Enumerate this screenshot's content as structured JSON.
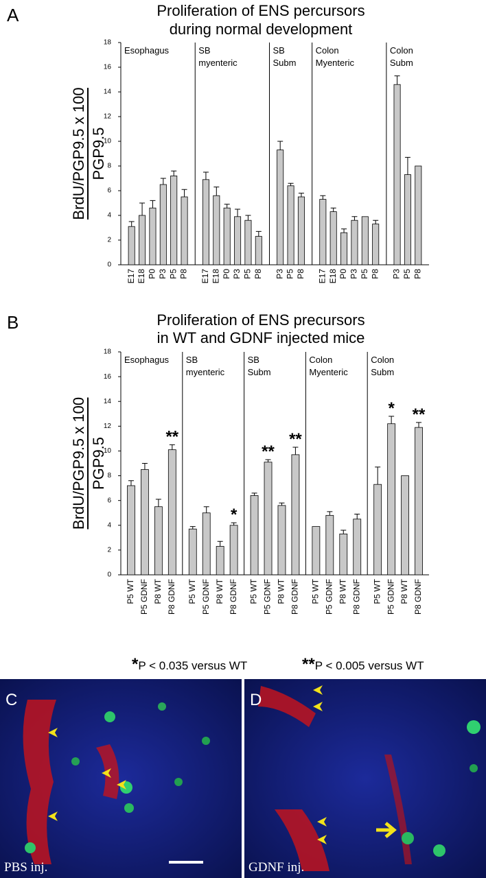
{
  "chart_data": [
    {
      "type": "bar",
      "panel": "A",
      "title": [
        "Proliferation of ENS percursors",
        "during normal development"
      ],
      "y_label": [
        "BrdU/PGP9.5 x 100",
        "PGP9.5"
      ],
      "ylim": [
        0,
        18
      ],
      "yticks": [
        0,
        2,
        4,
        6,
        8,
        10,
        12,
        14,
        16,
        18
      ],
      "color": "#c8c8c8",
      "groups": [
        {
          "name": [
            "Esophagus"
          ],
          "categories": [
            "E17",
            "E18",
            "P0",
            "P3",
            "P5",
            "P8"
          ],
          "values": [
            3.1,
            4.0,
            4.6,
            6.5,
            7.2,
            5.5
          ],
          "errors": [
            0.4,
            1.0,
            0.6,
            0.5,
            0.4,
            0.6
          ]
        },
        {
          "name": [
            "SB",
            "myenteric"
          ],
          "categories": [
            "E17",
            "E18",
            "P0",
            "P3",
            "P5",
            "P8"
          ],
          "values": [
            6.9,
            5.6,
            4.6,
            3.9,
            3.6,
            2.3
          ],
          "errors": [
            0.6,
            0.7,
            0.3,
            0.6,
            0.4,
            0.4
          ]
        },
        {
          "name": [
            "SB",
            "Subm"
          ],
          "categories": [
            "P3",
            "P5",
            "P8"
          ],
          "values": [
            9.3,
            6.4,
            5.5
          ],
          "errors": [
            0.7,
            0.2,
            0.3
          ]
        },
        {
          "name": [
            "Colon",
            "Myenteric"
          ],
          "categories": [
            "E17",
            "E18",
            "P0",
            "P3",
            "P5",
            "P8"
          ],
          "values": [
            5.3,
            4.3,
            2.6,
            3.6,
            3.9,
            3.3
          ],
          "errors": [
            0.3,
            0.3,
            0.3,
            0.3,
            null,
            0.3
          ]
        },
        {
          "name": [
            "Colon",
            "Subm"
          ],
          "categories": [
            "P3",
            "P5",
            "P8"
          ],
          "values": [
            14.6,
            7.3,
            8.0
          ],
          "errors": [
            0.7,
            1.4,
            null
          ]
        }
      ]
    },
    {
      "type": "bar",
      "panel": "B",
      "title": [
        "Proliferation of ENS precursors",
        "in WT and GDNF injected mice"
      ],
      "y_label": [
        "BrdU/PGP9.5 x 100",
        "PGP9.5"
      ],
      "ylim": [
        0,
        18
      ],
      "yticks": [
        0,
        2,
        4,
        6,
        8,
        10,
        12,
        14,
        16,
        18
      ],
      "color": "#c8c8c8",
      "groups": [
        {
          "name": [
            "Esophagus"
          ],
          "categories": [
            "P5 WT",
            "P5 GDNF",
            "P8 WT",
            "P8 GDNF"
          ],
          "values": [
            7.2,
            8.5,
            5.5,
            10.1
          ],
          "errors": [
            0.4,
            0.5,
            0.6,
            0.4
          ],
          "annotations": [
            null,
            null,
            null,
            "**"
          ]
        },
        {
          "name": [
            "SB",
            "myenteric"
          ],
          "categories": [
            "P5 WT",
            "P5 GDNF",
            "P8 WT",
            "P8 GDNF"
          ],
          "values": [
            3.7,
            5.0,
            2.3,
            4.0
          ],
          "errors": [
            0.2,
            0.5,
            0.4,
            0.2
          ],
          "annotations": [
            null,
            null,
            null,
            "*"
          ]
        },
        {
          "name": [
            "SB",
            "Subm"
          ],
          "categories": [
            "P5 WT",
            "P5 GDNF",
            "P8 WT",
            "P8 GDNF"
          ],
          "values": [
            6.4,
            9.1,
            5.6,
            9.7
          ],
          "errors": [
            0.2,
            0.2,
            0.2,
            0.6
          ],
          "annotations": [
            null,
            "**",
            null,
            "**"
          ]
        },
        {
          "name": [
            "Colon",
            "Myenteric"
          ],
          "categories": [
            "P5 WT",
            "P5 GDNF",
            "P8 WT",
            "P8 GDNF"
          ],
          "values": [
            3.9,
            4.8,
            3.3,
            4.5
          ],
          "errors": [
            null,
            0.3,
            0.3,
            0.4
          ]
        },
        {
          "name": [
            "Colon",
            "Subm"
          ],
          "categories": [
            "P5 WT",
            "P5 GDNF",
            "P8 WT",
            "P8 GDNF"
          ],
          "values": [
            7.3,
            12.2,
            8.0,
            11.9
          ],
          "errors": [
            1.4,
            0.6,
            null,
            0.4
          ],
          "annotations": [
            null,
            "*",
            null,
            "**"
          ]
        }
      ]
    }
  ],
  "footnotes": [
    {
      "star": "*",
      "text": "P < 0.035 versus WT"
    },
    {
      "star": "**",
      "text": "P < 0.005 versus WT"
    }
  ],
  "images": [
    {
      "panel": "C",
      "caption": "PBS inj."
    },
    {
      "panel": "D",
      "caption": "GDNF inj."
    }
  ]
}
